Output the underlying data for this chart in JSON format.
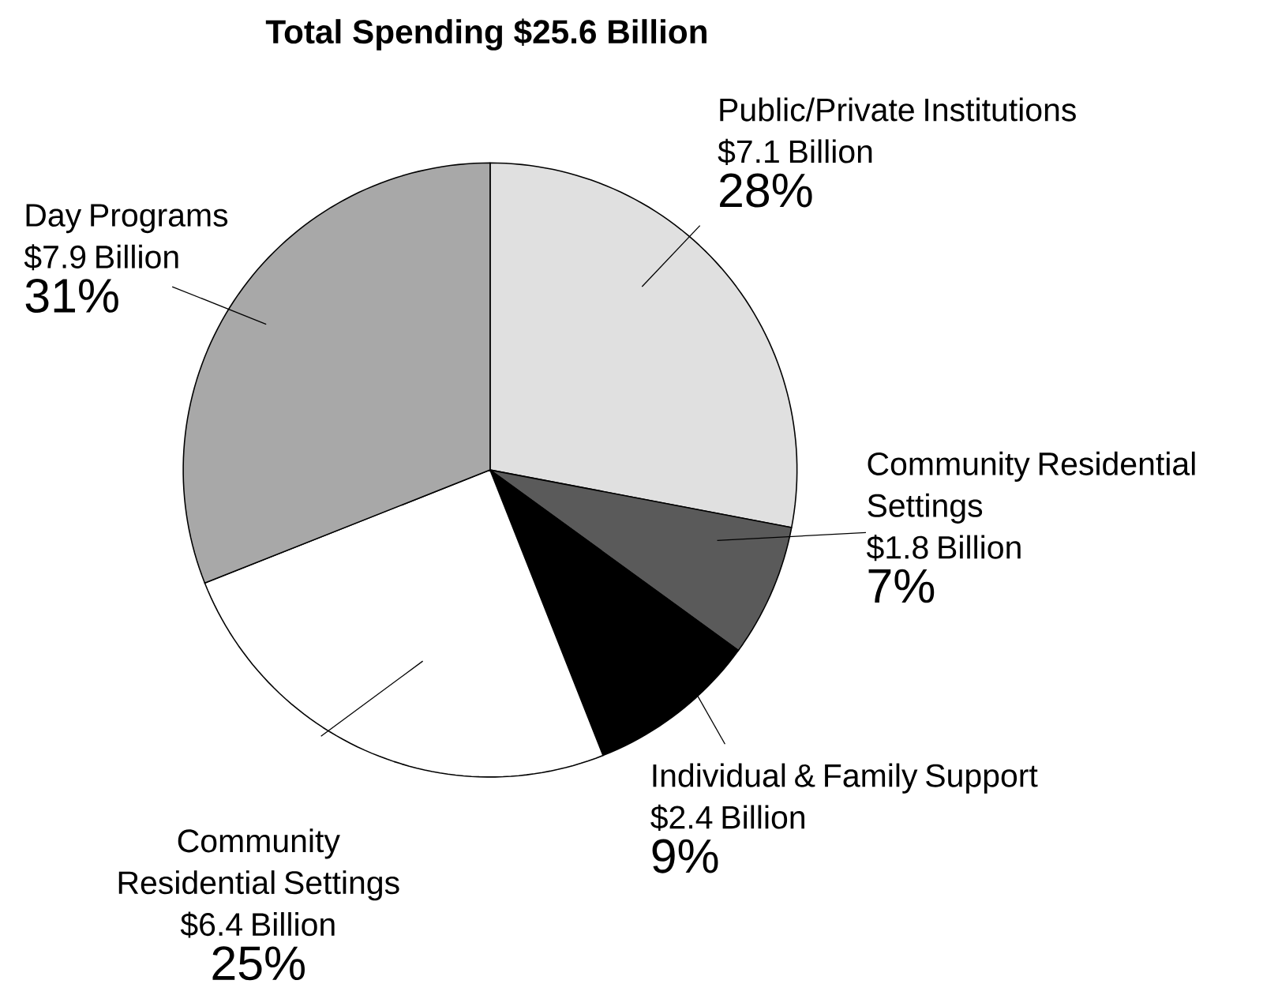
{
  "chart_data": {
    "type": "pie",
    "title": "Total Spending $25.6 Billion",
    "categories": [
      "Public/Private Institutions",
      "Community Residential Settings",
      "Individual & Family Support",
      "Community Residential Settings",
      "Day Programs"
    ],
    "values": [
      28,
      7,
      9,
      25,
      31
    ],
    "colors": [
      "#e0e0e0",
      "#5a5a5a",
      "#000000",
      "#ffffff",
      "#a8a8a8"
    ],
    "value_labels": [
      "28%",
      "7%",
      "9%",
      "25%",
      "31%"
    ],
    "annotations": [
      "$7.1 Billion",
      "$1.8 Billion",
      "$2.4 Billion",
      "$6.4 Billion",
      "$7.9 Billion"
    ]
  }
}
